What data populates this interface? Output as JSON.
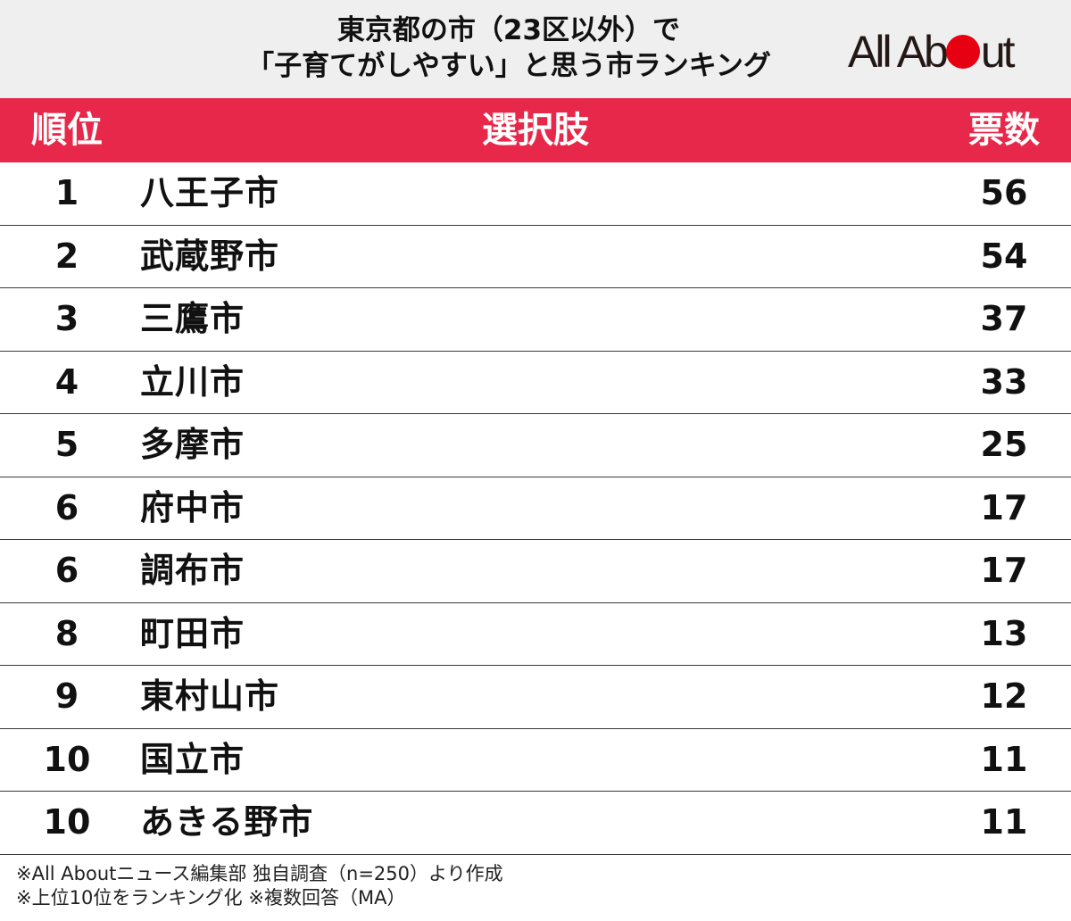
{
  "header": {
    "title_line1": "東京都の市（23区以外）で",
    "title_line2": "「子育てがしやすい」と思う市ランキング",
    "logo_part1": "All Ab",
    "logo_part2": "ut"
  },
  "chart_data": {
    "type": "table",
    "columns": [
      "順位",
      "選択肢",
      "票数"
    ],
    "rows": [
      {
        "rank": "1",
        "name": "八王子市",
        "votes": "56"
      },
      {
        "rank": "2",
        "name": "武蔵野市",
        "votes": "54"
      },
      {
        "rank": "3",
        "name": "三鷹市",
        "votes": "37"
      },
      {
        "rank": "4",
        "name": "立川市",
        "votes": "33"
      },
      {
        "rank": "5",
        "name": "多摩市",
        "votes": "25"
      },
      {
        "rank": "6",
        "name": "府中市",
        "votes": "17"
      },
      {
        "rank": "6",
        "name": "調布市",
        "votes": "17"
      },
      {
        "rank": "8",
        "name": "町田市",
        "votes": "13"
      },
      {
        "rank": "9",
        "name": "東村山市",
        "votes": "12"
      },
      {
        "rank": "10",
        "name": "国立市",
        "votes": "11"
      },
      {
        "rank": "10",
        "name": "あきる野市",
        "votes": "11"
      }
    ]
  },
  "notes": {
    "line1": "※All Aboutニュース編集部 独自調査（n=250）より作成",
    "line2": "※上位10位をランキング化 ※複数回答（MA）"
  },
  "colors": {
    "header_band": "#e8284a",
    "title_background": "#efefef",
    "logo_dot": "#e60012"
  }
}
